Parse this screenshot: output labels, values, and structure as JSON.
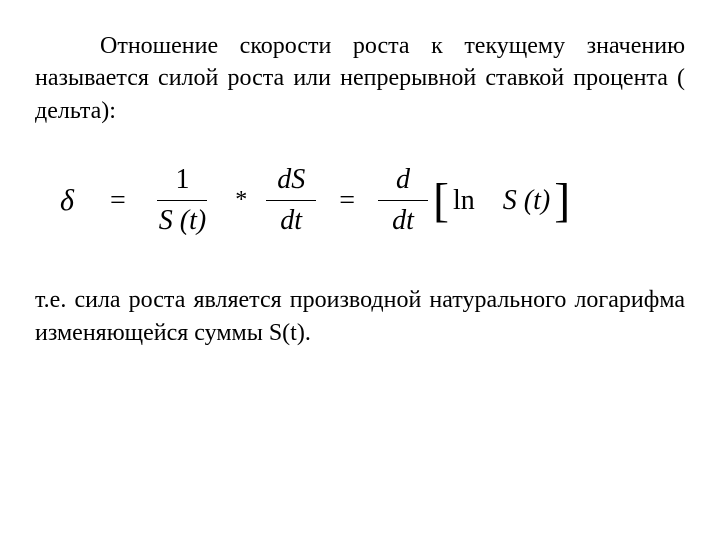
{
  "text": {
    "paragraph1": "Отношение скорости роста к текущему значению называется силой роста или непрерывной ставкой процента ( дельта):",
    "paragraph2": "т.е. сила роста является производной натурального логарифма изменяющейся суммы S(t)."
  },
  "formula": {
    "delta": "δ",
    "eq": "=",
    "frac1_num": "1",
    "frac1_den_S": "S",
    "frac1_den_t": "(t)",
    "mult": "*",
    "frac2_num_d": "d",
    "frac2_num_S": "S",
    "frac2_den_d": "d",
    "frac2_den_t": "t",
    "frac3_num_d": "d",
    "frac3_den_d": "d",
    "frac3_den_t": "t",
    "lbracket": "[",
    "ln": "ln",
    "S": "S",
    "t_paren": "(t)",
    "rbracket": "]"
  },
  "style": {
    "font_size_body": 24,
    "font_size_formula": 28,
    "text_color": "#000000",
    "background_color": "#ffffff"
  }
}
